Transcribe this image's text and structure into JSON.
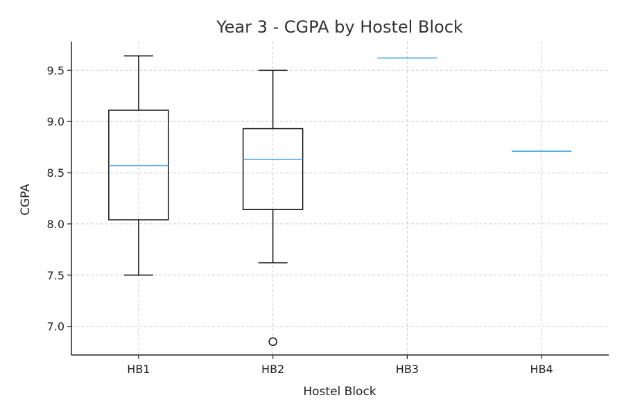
{
  "chart_data": {
    "type": "box",
    "title": "Year 3 - CGPA by Hostel Block",
    "xlabel": "Hostel Block",
    "ylabel": "CGPA",
    "ylim": [
      6.72,
      9.78
    ],
    "yticks": [
      "7.0",
      "7.5",
      "8.0",
      "8.5",
      "9.0",
      "9.5"
    ],
    "grid": true,
    "median_color": "#5dade2",
    "categories": [
      "HB1",
      "HB2",
      "HB3",
      "HB4"
    ],
    "boxes": [
      {
        "category": "HB1",
        "whisker_low": 7.5,
        "q1": 8.04,
        "median": 8.57,
        "q3": 9.11,
        "whisker_high": 9.64,
        "outliers": []
      },
      {
        "category": "HB2",
        "whisker_low": 7.62,
        "q1": 8.14,
        "median": 8.63,
        "q3": 8.93,
        "whisker_high": 9.5,
        "outliers": [
          6.85
        ]
      },
      {
        "category": "HB3",
        "whisker_low": 9.62,
        "q1": 9.62,
        "median": 9.62,
        "q3": 9.62,
        "whisker_high": 9.62,
        "outliers": []
      },
      {
        "category": "HB4",
        "whisker_low": 8.71,
        "q1": 8.71,
        "median": 8.71,
        "q3": 8.71,
        "whisker_high": 8.71,
        "outliers": []
      }
    ]
  }
}
